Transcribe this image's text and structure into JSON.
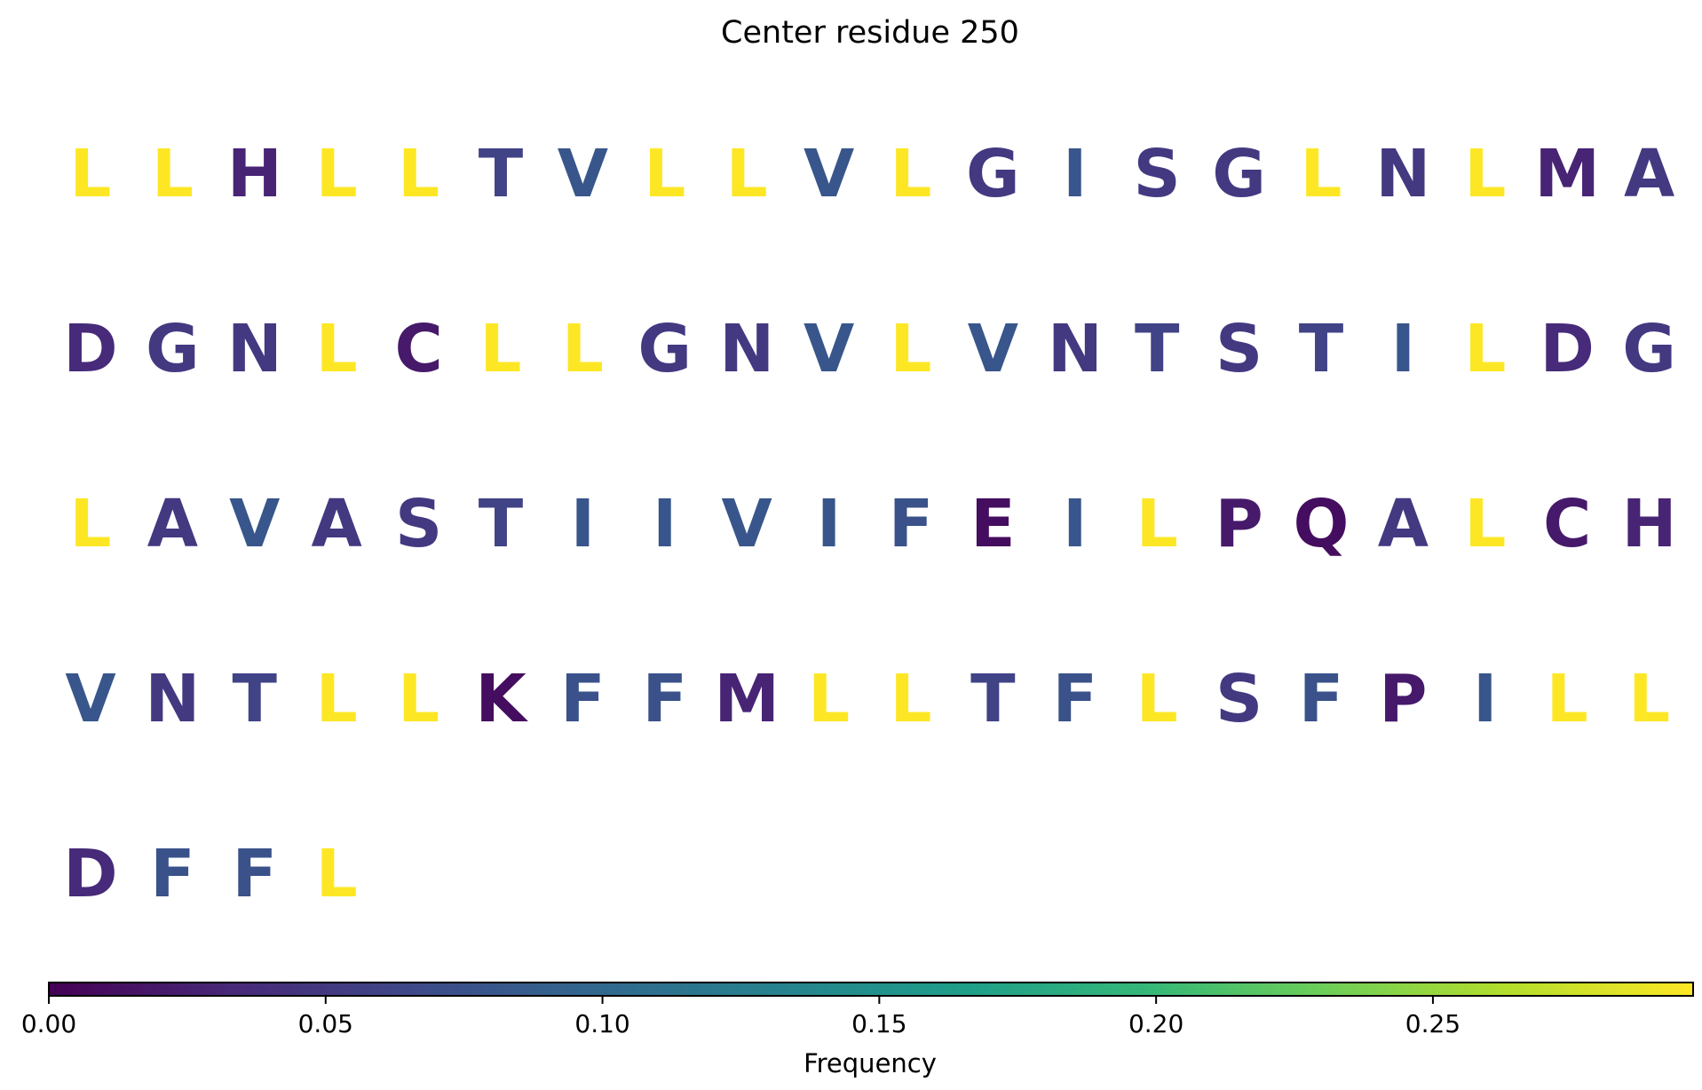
{
  "chart_data": {
    "type": "heatmap",
    "title": "Center residue 250",
    "colormap": "viridis",
    "residues": [
      {
        "letter": "L",
        "value": 0.3
      },
      {
        "letter": "L",
        "value": 0.3
      },
      {
        "letter": "H",
        "value": 0.03
      },
      {
        "letter": "L",
        "value": 0.3
      },
      {
        "letter": "L",
        "value": 0.3
      },
      {
        "letter": "T",
        "value": 0.06
      },
      {
        "letter": "V",
        "value": 0.08
      },
      {
        "letter": "L",
        "value": 0.3
      },
      {
        "letter": "L",
        "value": 0.3
      },
      {
        "letter": "V",
        "value": 0.08
      },
      {
        "letter": "L",
        "value": 0.3
      },
      {
        "letter": "G",
        "value": 0.05
      },
      {
        "letter": "I",
        "value": 0.08
      },
      {
        "letter": "S",
        "value": 0.05
      },
      {
        "letter": "G",
        "value": 0.05
      },
      {
        "letter": "L",
        "value": 0.3
      },
      {
        "letter": "N",
        "value": 0.05
      },
      {
        "letter": "L",
        "value": 0.3
      },
      {
        "letter": "M",
        "value": 0.03
      },
      {
        "letter": "A",
        "value": 0.05
      },
      {
        "letter": "D",
        "value": 0.035
      },
      {
        "letter": "G",
        "value": 0.05
      },
      {
        "letter": "N",
        "value": 0.05
      },
      {
        "letter": "L",
        "value": 0.3
      },
      {
        "letter": "C",
        "value": 0.02
      },
      {
        "letter": "L",
        "value": 0.3
      },
      {
        "letter": "L",
        "value": 0.3
      },
      {
        "letter": "G",
        "value": 0.05
      },
      {
        "letter": "N",
        "value": 0.05
      },
      {
        "letter": "V",
        "value": 0.08
      },
      {
        "letter": "L",
        "value": 0.3
      },
      {
        "letter": "V",
        "value": 0.08
      },
      {
        "letter": "N",
        "value": 0.05
      },
      {
        "letter": "T",
        "value": 0.06
      },
      {
        "letter": "S",
        "value": 0.05
      },
      {
        "letter": "T",
        "value": 0.06
      },
      {
        "letter": "I",
        "value": 0.08
      },
      {
        "letter": "L",
        "value": 0.3
      },
      {
        "letter": "D",
        "value": 0.035
      },
      {
        "letter": "G",
        "value": 0.05
      },
      {
        "letter": "L",
        "value": 0.3
      },
      {
        "letter": "A",
        "value": 0.05
      },
      {
        "letter": "V",
        "value": 0.08
      },
      {
        "letter": "A",
        "value": 0.05
      },
      {
        "letter": "S",
        "value": 0.05
      },
      {
        "letter": "T",
        "value": 0.06
      },
      {
        "letter": "I",
        "value": 0.08
      },
      {
        "letter": "I",
        "value": 0.08
      },
      {
        "letter": "V",
        "value": 0.08
      },
      {
        "letter": "I",
        "value": 0.08
      },
      {
        "letter": "F",
        "value": 0.075
      },
      {
        "letter": "E",
        "value": 0.01
      },
      {
        "letter": "I",
        "value": 0.08
      },
      {
        "letter": "L",
        "value": 0.3
      },
      {
        "letter": "P",
        "value": 0.02
      },
      {
        "letter": "Q",
        "value": 0.01
      },
      {
        "letter": "A",
        "value": 0.05
      },
      {
        "letter": "L",
        "value": 0.3
      },
      {
        "letter": "C",
        "value": 0.02
      },
      {
        "letter": "H",
        "value": 0.03
      },
      {
        "letter": "V",
        "value": 0.08
      },
      {
        "letter": "N",
        "value": 0.05
      },
      {
        "letter": "T",
        "value": 0.06
      },
      {
        "letter": "L",
        "value": 0.3
      },
      {
        "letter": "L",
        "value": 0.3
      },
      {
        "letter": "K",
        "value": 0.01
      },
      {
        "letter": "F",
        "value": 0.075
      },
      {
        "letter": "F",
        "value": 0.075
      },
      {
        "letter": "M",
        "value": 0.03
      },
      {
        "letter": "L",
        "value": 0.3
      },
      {
        "letter": "L",
        "value": 0.3
      },
      {
        "letter": "T",
        "value": 0.06
      },
      {
        "letter": "F",
        "value": 0.075
      },
      {
        "letter": "L",
        "value": 0.3
      },
      {
        "letter": "S",
        "value": 0.05
      },
      {
        "letter": "F",
        "value": 0.075
      },
      {
        "letter": "P",
        "value": 0.02
      },
      {
        "letter": "I",
        "value": 0.08
      },
      {
        "letter": "L",
        "value": 0.3
      },
      {
        "letter": "L",
        "value": 0.3
      },
      {
        "letter": "D",
        "value": 0.035
      },
      {
        "letter": "F",
        "value": 0.075
      },
      {
        "letter": "F",
        "value": 0.075
      },
      {
        "letter": "L",
        "value": 0.3
      }
    ],
    "colorbar": {
      "label": "Frequency",
      "range": [
        0,
        0.297
      ],
      "ticks": [
        0.0,
        0.05,
        0.1,
        0.15,
        0.2,
        0.25
      ],
      "tick_labels": [
        "0.00",
        "0.05",
        "0.10",
        "0.15",
        "0.20",
        "0.25"
      ],
      "orientation": "horizontal",
      "position": "bottom"
    }
  }
}
